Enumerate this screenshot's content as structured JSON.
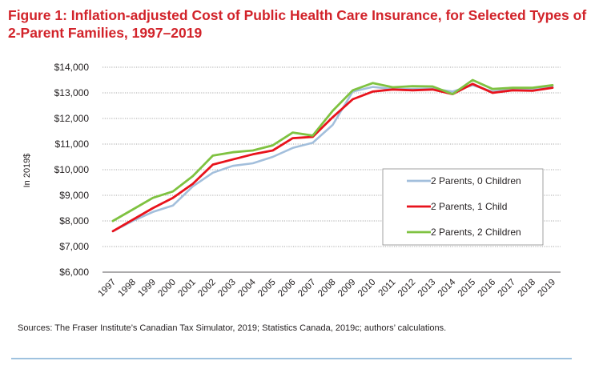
{
  "figure": {
    "title": "Figure 1: Inflation-adjusted Cost of Public Health Care Insurance, for Selected Types of 2-Parent Families, 1997–2019",
    "source": "Sources: The Fraser Institute’s Canadian Tax Simulator, 2019; Statistics Canada, 2019c; authors’ calculations."
  },
  "chart_data": {
    "type": "line",
    "title": "Figure 1: Inflation-adjusted Cost of Public Health Care Insurance, for Selected Types of 2-Parent Families, 1997–2019",
    "xlabel": "",
    "ylabel": "In 2019$",
    "ylim": [
      6000,
      14000
    ],
    "yticks": [
      6000,
      7000,
      8000,
      9000,
      10000,
      11000,
      12000,
      13000,
      14000
    ],
    "ytick_labels": [
      "$6,000",
      "$7,000",
      "$8,000",
      "$9,000",
      "$10,000",
      "$11,000",
      "$12,000",
      "$13,000",
      "$14,000"
    ],
    "x": [
      "1997",
      "1998",
      "1999",
      "2000",
      "2001",
      "2002",
      "2003",
      "2004",
      "2005",
      "2006",
      "2007",
      "2008",
      "2009",
      "2010",
      "2011",
      "2012",
      "2013",
      "2014",
      "2015",
      "2016",
      "2017",
      "2018",
      "2019"
    ],
    "grid": true,
    "legend_position": "right",
    "series": [
      {
        "name": "2 Parents, 0 Children",
        "color": "#a3bfdc",
        "values": [
          7600,
          8000,
          8350,
          8600,
          9350,
          9880,
          10150,
          10250,
          10500,
          10850,
          11050,
          11750,
          13050,
          13230,
          13150,
          13150,
          13170,
          13050,
          13300,
          13050,
          13150,
          13150,
          13250
        ]
      },
      {
        "name": "2 Parents, 1 Child",
        "color": "#e8131c",
        "values": [
          7600,
          8050,
          8500,
          8900,
          9450,
          10200,
          10400,
          10600,
          10750,
          11230,
          11280,
          12050,
          12750,
          13050,
          13130,
          13100,
          13130,
          12950,
          13350,
          13000,
          13100,
          13080,
          13200
        ]
      },
      {
        "name": "2 Parents, 2 Children",
        "color": "#7fc241",
        "values": [
          8000,
          8450,
          8900,
          9150,
          9750,
          10550,
          10680,
          10750,
          10950,
          11450,
          11330,
          12300,
          13100,
          13380,
          13220,
          13260,
          13250,
          12950,
          13500,
          13150,
          13200,
          13200,
          13300
        ]
      }
    ]
  }
}
